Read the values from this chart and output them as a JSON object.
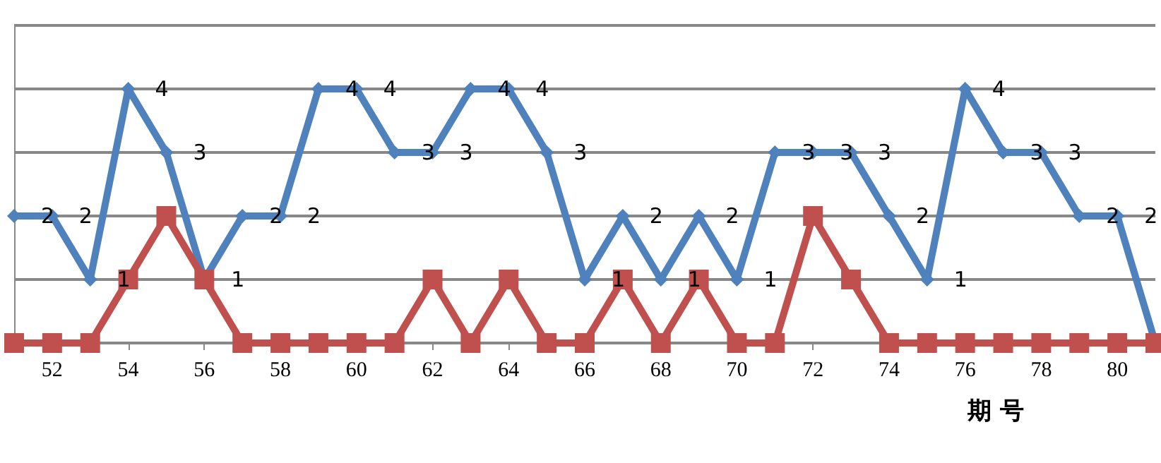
{
  "chart_data": {
    "type": "line",
    "xlabel": "期 号",
    "categories": [
      null,
      "52",
      null,
      "54",
      null,
      "56",
      null,
      "58",
      null,
      "60",
      null,
      "62",
      null,
      "64",
      null,
      "66",
      null,
      "68",
      null,
      "70",
      null,
      "72",
      null,
      "74",
      null,
      "76",
      null,
      "78",
      null,
      "80",
      null
    ],
    "ylim": [
      0,
      5
    ],
    "grid": "y",
    "line_style": "solid",
    "series": [
      {
        "color": "#4f81bd",
        "marker": "diamond",
        "values": [
          2,
          2,
          1,
          4,
          3,
          1,
          2,
          2,
          4,
          4,
          3,
          3,
          4,
          4,
          3,
          1,
          2,
          1,
          2,
          1,
          3,
          3,
          3,
          2,
          1,
          4,
          3,
          3,
          2,
          2,
          0
        ],
        "value_labels": [
          "2",
          "2",
          "1",
          "4",
          "3",
          "1",
          "2",
          "2",
          "4",
          "4",
          "3",
          "3",
          "4",
          "4",
          "3",
          "1",
          "2",
          "1",
          "2",
          "1",
          "3",
          "3",
          "3",
          "2",
          "1",
          "4",
          "3",
          "3",
          "2",
          "2",
          null
        ]
      },
      {
        "color": "#c0504d",
        "marker": "square",
        "values": [
          0,
          0,
          0,
          1,
          2,
          1,
          0,
          0,
          0,
          0,
          0,
          1,
          0,
          1,
          0,
          0,
          1,
          0,
          1,
          0,
          0,
          2,
          1,
          0,
          0,
          0,
          0,
          0,
          0,
          0,
          0
        ]
      }
    ]
  }
}
